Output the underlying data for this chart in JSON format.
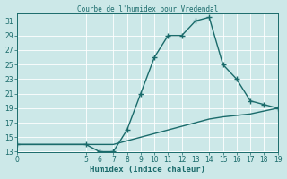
{
  "title": "Courbe de l'humidex pour Vredendal",
  "xlabel": "Humidex (Indice chaleur)",
  "xlim": [
    0,
    19
  ],
  "ylim": [
    13,
    32
  ],
  "xticks": [
    0,
    5,
    6,
    7,
    8,
    9,
    10,
    11,
    12,
    13,
    14,
    15,
    16,
    17,
    18,
    19
  ],
  "yticks": [
    13,
    15,
    17,
    19,
    21,
    23,
    25,
    27,
    29,
    31
  ],
  "bg_color": "#cce8e8",
  "line_color": "#1a6b6b",
  "grid_color": "#b0d4d4",
  "line1_x": [
    0,
    5,
    6,
    7,
    8,
    9,
    10,
    11,
    12,
    13,
    14,
    15,
    16,
    17,
    18,
    19
  ],
  "line1_y": [
    14,
    14,
    13,
    13,
    16,
    21,
    26,
    29,
    29,
    31,
    31.5,
    25,
    23,
    20,
    19.5,
    19
  ],
  "line2_x": [
    0,
    5,
    6,
    7,
    8,
    9,
    10,
    11,
    12,
    13,
    14,
    15,
    16,
    17,
    18,
    19
  ],
  "line2_y": [
    14,
    14,
    14,
    14,
    14.5,
    15,
    15.5,
    16,
    16.5,
    17,
    17.5,
    17.8,
    18.0,
    18.2,
    18.6,
    19
  ],
  "marker": "+",
  "markersize": 5,
  "linewidth": 1.0
}
